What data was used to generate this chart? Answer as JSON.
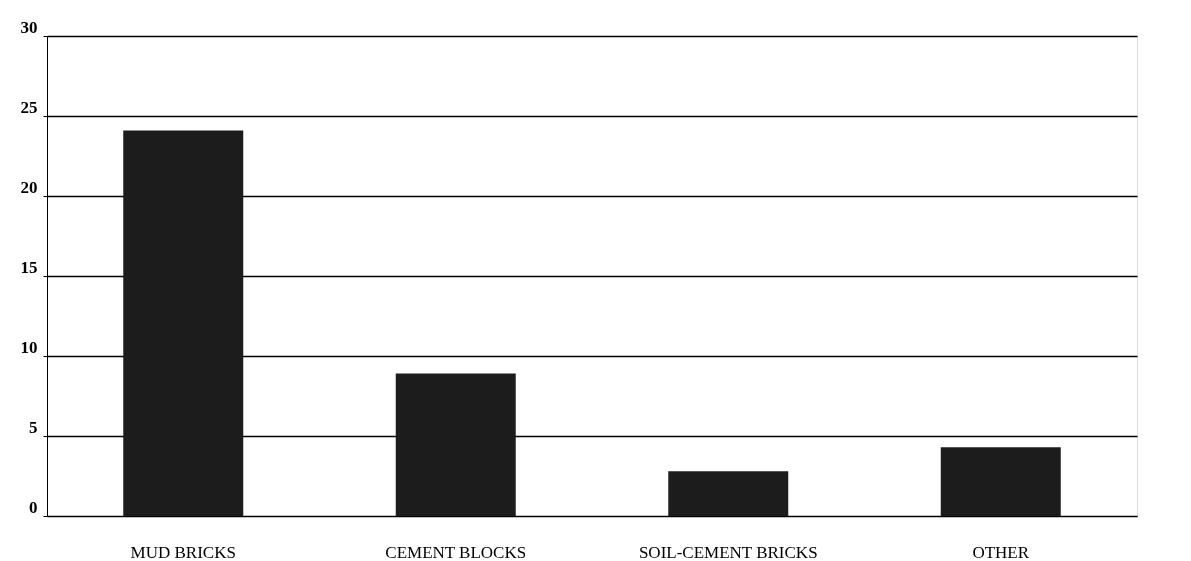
{
  "chart_data": {
    "type": "bar",
    "categories": [
      "MUD BRICKS",
      "CEMENT BLOCKS",
      "SOIL-CEMENT BRICKS",
      "OTHER"
    ],
    "values": [
      24.1,
      8.9,
      2.8,
      4.3
    ],
    "color": "#1c1c1c",
    "ylim": [
      0,
      30
    ],
    "yticks": [
      0,
      5,
      10,
      15,
      20,
      25,
      30
    ],
    "grid": "y"
  }
}
